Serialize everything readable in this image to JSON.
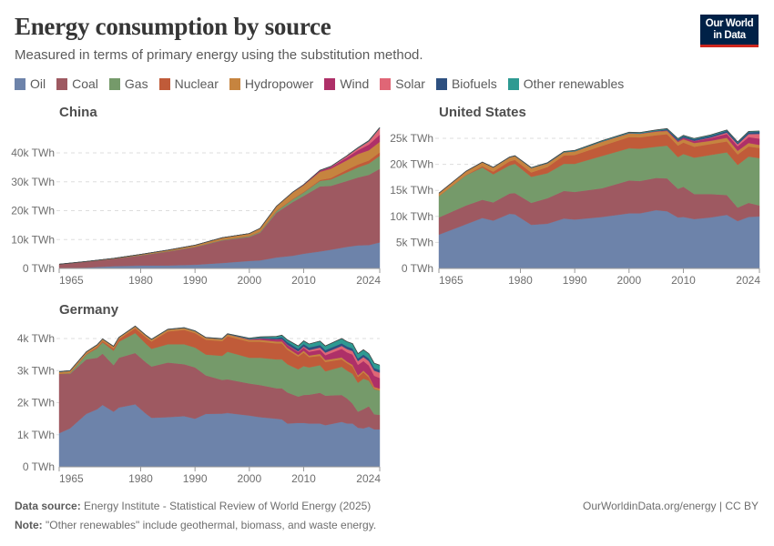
{
  "header": {
    "title": "Energy consumption by source",
    "subtitle": "Measured in terms of primary energy using the substitution method.",
    "logo": "Our World in Data",
    "logo_line1": "Our World",
    "logo_line2": "in Data"
  },
  "legend": [
    {
      "label": "Oil",
      "color": "#6d83aa"
    },
    {
      "label": "Coal",
      "color": "#9e5961"
    },
    {
      "label": "Gas",
      "color": "#759a6a"
    },
    {
      "label": "Nuclear",
      "color": "#c05b39"
    },
    {
      "label": "Hydropower",
      "color": "#c6843f"
    },
    {
      "label": "Wind",
      "color": "#ae3068"
    },
    {
      "label": "Solar",
      "color": "#e06676"
    },
    {
      "label": "Biofuels",
      "color": "#2e5080"
    },
    {
      "label": "Other renewables",
      "color": "#2e9a92"
    }
  ],
  "footer": {
    "source_label": "Data source:",
    "source": "Energy Institute - Statistical Review of World Energy (2025)",
    "note_label": "Note:",
    "note": "\"Other renewables\" include geothermal, biomass, and waste energy.",
    "link": "OurWorldinData.org/energy | CC BY"
  },
  "chart_data": [
    {
      "type": "area",
      "stacked": true,
      "title": "China",
      "unit": "TWh",
      "ylim": [
        0,
        48700
      ],
      "xlim": [
        1965,
        2024
      ],
      "yticks": [
        {
          "v": 0,
          "label": "0 TWh"
        },
        {
          "v": 10000,
          "label": "10k TWh"
        },
        {
          "v": 20000,
          "label": "20k TWh"
        },
        {
          "v": 30000,
          "label": "30k TWh"
        },
        {
          "v": 40000,
          "label": "40k TWh"
        }
      ],
      "xticks": [
        {
          "v": 1965,
          "label": "1965"
        },
        {
          "v": 1980,
          "label": "1980"
        },
        {
          "v": 1990,
          "label": "1990"
        },
        {
          "v": 2000,
          "label": "2000"
        },
        {
          "v": 2010,
          "label": "2010"
        },
        {
          "v": 2024,
          "label": "2024"
        }
      ],
      "x": [
        1965,
        1970,
        1975,
        1980,
        1985,
        1990,
        1995,
        2000,
        2002,
        2005,
        2008,
        2010,
        2013,
        2015,
        2018,
        2020,
        2022,
        2024
      ],
      "series": [
        {
          "name": "Oil",
          "values": [
            130,
            330,
            800,
            1000,
            1050,
            1300,
            1900,
            2600,
            2800,
            3800,
            4400,
            5100,
            5900,
            6500,
            7500,
            8000,
            8100,
            9000
          ]
        },
        {
          "name": "Coal",
          "values": [
            1300,
            2000,
            2500,
            3500,
            4800,
            6100,
            7800,
            8300,
            9600,
            15500,
            18600,
            20000,
            22500,
            22100,
            22800,
            23500,
            24300,
            25500
          ]
        },
        {
          "name": "Gas",
          "values": [
            10,
            30,
            90,
            160,
            150,
            170,
            200,
            280,
            330,
            530,
            900,
            1200,
            1900,
            2200,
            3000,
            3500,
            3900,
            4500
          ]
        },
        {
          "name": "Nuclear",
          "values": [
            0,
            0,
            0,
            0,
            0,
            0,
            40,
            60,
            80,
            170,
            200,
            230,
            340,
            520,
            890,
            1000,
            1100,
            1200
          ]
        },
        {
          "name": "Hydropower",
          "values": [
            30,
            80,
            120,
            230,
            370,
            480,
            700,
            850,
            1100,
            1500,
            2200,
            2300,
            2800,
            3200,
            3300,
            3600,
            3500,
            3600
          ]
        },
        {
          "name": "Wind",
          "values": [
            0,
            0,
            0,
            0,
            0,
            0,
            0,
            0,
            5,
            10,
            50,
            140,
            400,
            560,
            980,
            1300,
            2000,
            2500
          ]
        },
        {
          "name": "Solar",
          "values": [
            0,
            0,
            0,
            0,
            0,
            0,
            0,
            0,
            0,
            0,
            0,
            5,
            30,
            120,
            450,
            700,
            1100,
            2200
          ]
        },
        {
          "name": "Biofuels",
          "values": [
            0,
            0,
            0,
            0,
            0,
            0,
            0,
            0,
            0,
            10,
            20,
            30,
            40,
            50,
            60,
            70,
            80,
            90
          ]
        },
        {
          "name": "Other renewables",
          "values": [
            0,
            0,
            0,
            0,
            0,
            0,
            10,
            20,
            20,
            30,
            40,
            50,
            60,
            80,
            100,
            150,
            200,
            200
          ]
        }
      ]
    },
    {
      "type": "area",
      "stacked": true,
      "title": "United States",
      "unit": "TWh",
      "ylim": [
        0,
        25000
      ],
      "xlim": [
        1965,
        2024
      ],
      "yticks": [
        {
          "v": 0,
          "label": "0 TWh"
        },
        {
          "v": 5000,
          "label": "5k TWh"
        },
        {
          "v": 10000,
          "label": "10k TWh"
        },
        {
          "v": 15000,
          "label": "15k TWh"
        },
        {
          "v": 20000,
          "label": "20k TWh"
        },
        {
          "v": 25000,
          "label": "25k TWh"
        }
      ],
      "xticks": [
        {
          "v": 1965,
          "label": "1965"
        },
        {
          "v": 1980,
          "label": "1980"
        },
        {
          "v": 1990,
          "label": "1990"
        },
        {
          "v": 2000,
          "label": "2000"
        },
        {
          "v": 2010,
          "label": "2010"
        },
        {
          "v": 2024,
          "label": "2024"
        }
      ],
      "x": [
        1965,
        1970,
        1973,
        1975,
        1978,
        1979,
        1982,
        1985,
        1988,
        1990,
        1995,
        2000,
        2002,
        2005,
        2007,
        2009,
        2010,
        2012,
        2015,
        2018,
        2020,
        2022,
        2024
      ],
      "series": [
        {
          "name": "Oil",
          "values": [
            6500,
            8500,
            9700,
            9200,
            10500,
            10400,
            8400,
            8600,
            9600,
            9400,
            9900,
            10600,
            10600,
            11200,
            11000,
            9800,
            9900,
            9500,
            9800,
            10300,
            9100,
            9900,
            10000
          ]
        },
        {
          "name": "Coal",
          "values": [
            3300,
            3600,
            3500,
            3500,
            3900,
            4100,
            4200,
            4900,
            5300,
            5300,
            5500,
            6300,
            6200,
            6200,
            6300,
            5500,
            5800,
            4800,
            4500,
            3800,
            2600,
            2700,
            2100
          ]
        },
        {
          "name": "Gas",
          "values": [
            4100,
            5800,
            6200,
            5400,
            5400,
            5600,
            5000,
            4800,
            5200,
            5400,
            6200,
            6200,
            6200,
            6000,
            6300,
            6100,
            6300,
            7000,
            7500,
            8200,
            8200,
            8900,
            9100
          ]
        },
        {
          "name": "Nuclear",
          "values": [
            10,
            60,
            250,
            500,
            800,
            750,
            850,
            1200,
            1600,
            1700,
            1950,
            2150,
            2200,
            2200,
            2200,
            2200,
            2200,
            2100,
            2100,
            2100,
            2000,
            1950,
            1950
          ]
        },
        {
          "name": "Hydropower",
          "values": [
            550,
            700,
            750,
            800,
            750,
            750,
            850,
            700,
            600,
            700,
            800,
            700,
            680,
            700,
            620,
            700,
            650,
            700,
            630,
            700,
            700,
            650,
            600
          ]
        },
        {
          "name": "Wind",
          "values": [
            0,
            0,
            0,
            0,
            0,
            0,
            0,
            10,
            20,
            20,
            20,
            30,
            30,
            50,
            100,
            200,
            260,
            380,
            530,
            750,
            900,
            1150,
            1200
          ]
        },
        {
          "name": "Solar",
          "values": [
            0,
            0,
            0,
            0,
            0,
            0,
            0,
            0,
            0,
            0,
            0,
            0,
            0,
            5,
            5,
            10,
            10,
            30,
            100,
            250,
            350,
            550,
            900
          ]
        },
        {
          "name": "Biofuels",
          "values": [
            0,
            0,
            0,
            0,
            0,
            0,
            0,
            20,
            20,
            20,
            30,
            50,
            60,
            100,
            200,
            280,
            300,
            300,
            330,
            350,
            320,
            380,
            400
          ]
        },
        {
          "name": "Other renewables",
          "values": [
            20,
            30,
            40,
            50,
            60,
            60,
            80,
            100,
            120,
            130,
            140,
            150,
            150,
            150,
            150,
            150,
            150,
            160,
            150,
            150,
            150,
            150,
            150
          ]
        }
      ]
    },
    {
      "type": "area",
      "stacked": true,
      "title": "Germany",
      "unit": "TWh",
      "ylim": [
        0,
        4000
      ],
      "xlim": [
        1965,
        2024
      ],
      "yticks": [
        {
          "v": 0,
          "label": "0 TWh"
        },
        {
          "v": 1000,
          "label": "1k TWh"
        },
        {
          "v": 2000,
          "label": "2k TWh"
        },
        {
          "v": 3000,
          "label": "3k TWh"
        },
        {
          "v": 4000,
          "label": "4k TWh"
        }
      ],
      "xticks": [
        {
          "v": 1965,
          "label": "1965"
        },
        {
          "v": 1980,
          "label": "1980"
        },
        {
          "v": 1990,
          "label": "1990"
        },
        {
          "v": 2000,
          "label": "2000"
        },
        {
          "v": 2010,
          "label": "2010"
        },
        {
          "v": 2024,
          "label": "2024"
        }
      ],
      "x": [
        1965,
        1967,
        1970,
        1972,
        1973,
        1975,
        1976,
        1979,
        1981,
        1982,
        1985,
        1988,
        1990,
        1992,
        1995,
        1996,
        2000,
        2002,
        2005,
        2006,
        2007,
        2009,
        2010,
        2011,
        2013,
        2014,
        2017,
        2018,
        2019,
        2020,
        2021,
        2022,
        2023,
        2024
      ],
      "series": [
        {
          "name": "Oil",
          "values": [
            1050,
            1200,
            1650,
            1800,
            1930,
            1720,
            1850,
            1950,
            1650,
            1530,
            1550,
            1580,
            1500,
            1650,
            1660,
            1680,
            1600,
            1550,
            1500,
            1480,
            1350,
            1370,
            1370,
            1350,
            1350,
            1300,
            1400,
            1350,
            1350,
            1220,
            1200,
            1250,
            1170,
            1170
          ]
        },
        {
          "name": "Coal",
          "values": [
            1850,
            1700,
            1700,
            1600,
            1600,
            1450,
            1550,
            1600,
            1600,
            1600,
            1700,
            1620,
            1600,
            1200,
            1050,
            1050,
            1000,
            1000,
            950,
            970,
            970,
            820,
            870,
            900,
            960,
            920,
            840,
            780,
            620,
            500,
            600,
            640,
            470,
            450
          ]
        },
        {
          "name": "Gas",
          "values": [
            0,
            20,
            150,
            300,
            350,
            450,
            500,
            620,
            580,
            550,
            570,
            620,
            620,
            650,
            750,
            860,
            800,
            850,
            900,
            900,
            880,
            850,
            900,
            850,
            860,
            760,
            880,
            870,
            930,
            900,
            950,
            800,
            780,
            760
          ]
        },
        {
          "name": "Nuclear",
          "values": [
            0,
            10,
            20,
            40,
            40,
            70,
            80,
            150,
            200,
            230,
            400,
            450,
            450,
            460,
            460,
            480,
            500,
            500,
            500,
            500,
            450,
            400,
            420,
            320,
            290,
            290,
            230,
            230,
            230,
            180,
            200,
            100,
            20,
            0
          ]
        },
        {
          "name": "Hydropower",
          "values": [
            60,
            60,
            60,
            60,
            60,
            60,
            50,
            60,
            60,
            60,
            60,
            60,
            60,
            60,
            60,
            60,
            60,
            60,
            60,
            60,
            60,
            50,
            60,
            50,
            60,
            60,
            60,
            50,
            50,
            50,
            50,
            50,
            50,
            60
          ]
        },
        {
          "name": "Wind",
          "values": [
            0,
            0,
            0,
            0,
            0,
            0,
            0,
            0,
            0,
            0,
            0,
            0,
            0,
            5,
            5,
            5,
            20,
            40,
            60,
            70,
            90,
            90,
            100,
            120,
            130,
            150,
            270,
            290,
            320,
            330,
            300,
            320,
            350,
            330
          ]
        },
        {
          "name": "Solar",
          "values": [
            0,
            0,
            0,
            0,
            0,
            0,
            0,
            0,
            0,
            0,
            0,
            0,
            0,
            0,
            0,
            0,
            0,
            0,
            5,
            5,
            10,
            20,
            30,
            50,
            70,
            80,
            90,
            100,
            110,
            120,
            120,
            140,
            160,
            170
          ]
        },
        {
          "name": "Biofuels",
          "values": [
            0,
            0,
            0,
            0,
            0,
            0,
            0,
            0,
            0,
            0,
            0,
            0,
            0,
            0,
            0,
            0,
            10,
            20,
            40,
            60,
            80,
            80,
            80,
            80,
            80,
            80,
            80,
            80,
            80,
            80,
            80,
            80,
            80,
            80
          ]
        },
        {
          "name": "Other renewables",
          "values": [
            10,
            10,
            10,
            10,
            10,
            10,
            10,
            10,
            10,
            10,
            10,
            10,
            10,
            10,
            15,
            15,
            20,
            30,
            50,
            60,
            70,
            90,
            100,
            110,
            120,
            130,
            150,
            150,
            150,
            150,
            150,
            150,
            150,
            150
          ]
        }
      ]
    }
  ]
}
